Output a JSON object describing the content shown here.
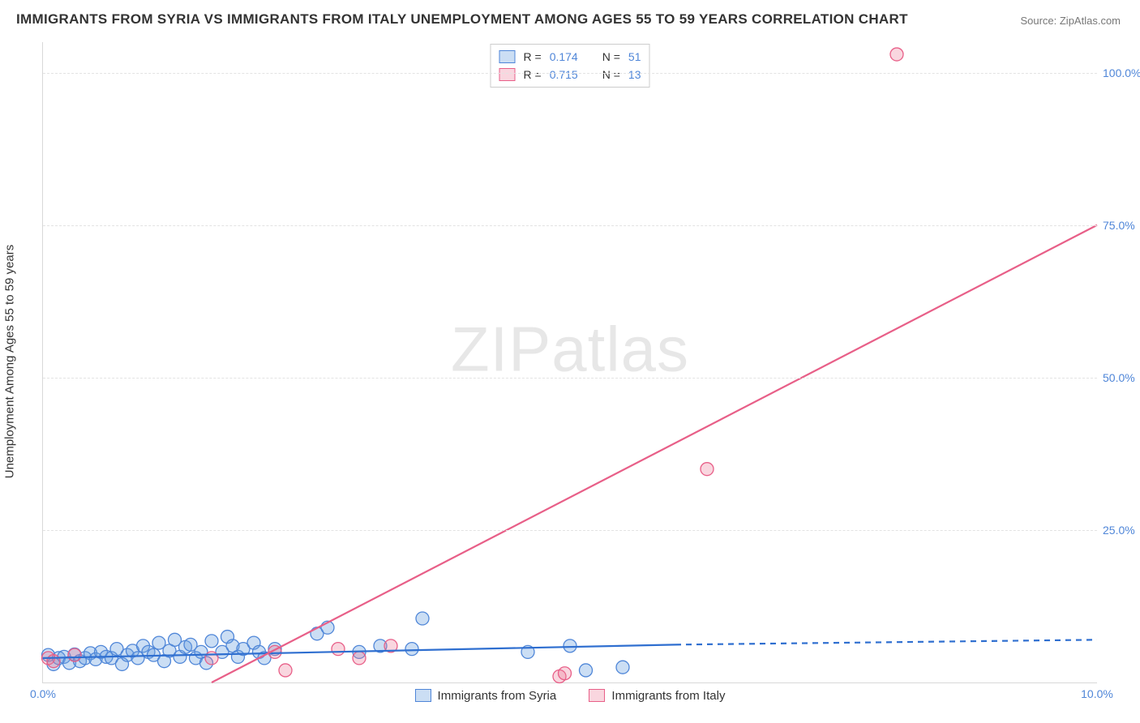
{
  "title": "IMMIGRANTS FROM SYRIA VS IMMIGRANTS FROM ITALY UNEMPLOYMENT AMONG AGES 55 TO 59 YEARS CORRELATION CHART",
  "source": "Source: ZipAtlas.com",
  "y_axis_title": "Unemployment Among Ages 55 to 59 years",
  "watermark": "ZIPatlas",
  "chart": {
    "type": "scatter-with-regression",
    "xlim": [
      0,
      10
    ],
    "ylim": [
      0,
      105
    ],
    "x_ticks": [
      0,
      10
    ],
    "x_tick_labels": [
      "0.0%",
      "10.0%"
    ],
    "y_ticks": [
      25,
      50,
      75,
      100
    ],
    "y_tick_labels": [
      "25.0%",
      "50.0%",
      "75.0%",
      "100.0%"
    ],
    "background_color": "#ffffff",
    "grid_color": "#e3e3e3",
    "marker_radius": 8,
    "marker_stroke_width": 1.3,
    "line_width": 2.2,
    "series": [
      {
        "name": "Immigrants from Syria",
        "color_fill": "rgba(106,160,224,0.35)",
        "color_stroke": "#4f86d8",
        "line_color": "#2f6fd0",
        "R": "0.174",
        "N": "51",
        "regression": {
          "x1": 0.0,
          "y1": 4.0,
          "x2": 6.0,
          "y2": 6.2,
          "dash_from_x": 6.0,
          "dash_to_x": 10.0,
          "dash_y1": 6.2,
          "dash_y2": 7.0
        },
        "points": [
          [
            0.05,
            4.5
          ],
          [
            0.1,
            3.0
          ],
          [
            0.15,
            4.0
          ],
          [
            0.2,
            4.2
          ],
          [
            0.25,
            3.2
          ],
          [
            0.3,
            4.6
          ],
          [
            0.35,
            3.5
          ],
          [
            0.4,
            4.0
          ],
          [
            0.45,
            4.8
          ],
          [
            0.5,
            3.8
          ],
          [
            0.55,
            5.0
          ],
          [
            0.6,
            4.2
          ],
          [
            0.65,
            4.0
          ],
          [
            0.7,
            5.5
          ],
          [
            0.75,
            3.0
          ],
          [
            0.8,
            4.5
          ],
          [
            0.85,
            5.2
          ],
          [
            0.9,
            4.0
          ],
          [
            0.95,
            6.0
          ],
          [
            1.0,
            5.0
          ],
          [
            1.05,
            4.5
          ],
          [
            1.1,
            6.5
          ],
          [
            1.15,
            3.5
          ],
          [
            1.2,
            5.2
          ],
          [
            1.25,
            7.0
          ],
          [
            1.3,
            4.2
          ],
          [
            1.35,
            5.8
          ],
          [
            1.4,
            6.2
          ],
          [
            1.45,
            4.0
          ],
          [
            1.5,
            5.0
          ],
          [
            1.55,
            3.2
          ],
          [
            1.6,
            6.8
          ],
          [
            1.7,
            5.0
          ],
          [
            1.75,
            7.5
          ],
          [
            1.8,
            6.0
          ],
          [
            1.85,
            4.2
          ],
          [
            1.9,
            5.5
          ],
          [
            2.0,
            6.5
          ],
          [
            2.05,
            5.0
          ],
          [
            2.1,
            4.0
          ],
          [
            2.2,
            5.5
          ],
          [
            2.6,
            8.0
          ],
          [
            2.7,
            9.0
          ],
          [
            3.0,
            5.0
          ],
          [
            3.2,
            6.0
          ],
          [
            3.5,
            5.5
          ],
          [
            3.6,
            10.5
          ],
          [
            4.6,
            5.0
          ],
          [
            5.0,
            6.0
          ],
          [
            5.15,
            2.0
          ],
          [
            5.5,
            2.5
          ]
        ]
      },
      {
        "name": "Immigrants from Italy",
        "color_fill": "rgba(236,120,150,0.30)",
        "color_stroke": "#e85f88",
        "line_color": "#e85f88",
        "R": "0.715",
        "N": "13",
        "regression": {
          "x1": 1.6,
          "y1": 0.0,
          "x2": 10.0,
          "y2": 75.0
        },
        "points": [
          [
            0.05,
            4.0
          ],
          [
            0.1,
            3.5
          ],
          [
            0.3,
            4.5
          ],
          [
            1.6,
            4.0
          ],
          [
            2.2,
            5.0
          ],
          [
            2.3,
            2.0
          ],
          [
            2.8,
            5.5
          ],
          [
            3.0,
            4.0
          ],
          [
            3.3,
            6.0
          ],
          [
            4.9,
            1.0
          ],
          [
            4.95,
            1.5
          ],
          [
            6.3,
            35.0
          ],
          [
            8.1,
            103.0
          ]
        ]
      }
    ]
  },
  "legend_bottom": [
    {
      "label": "Immigrants from Syria",
      "fill": "rgba(106,160,224,0.35)",
      "stroke": "#4f86d8"
    },
    {
      "label": "Immigrants from Italy",
      "fill": "rgba(236,120,150,0.30)",
      "stroke": "#e85f88"
    }
  ]
}
